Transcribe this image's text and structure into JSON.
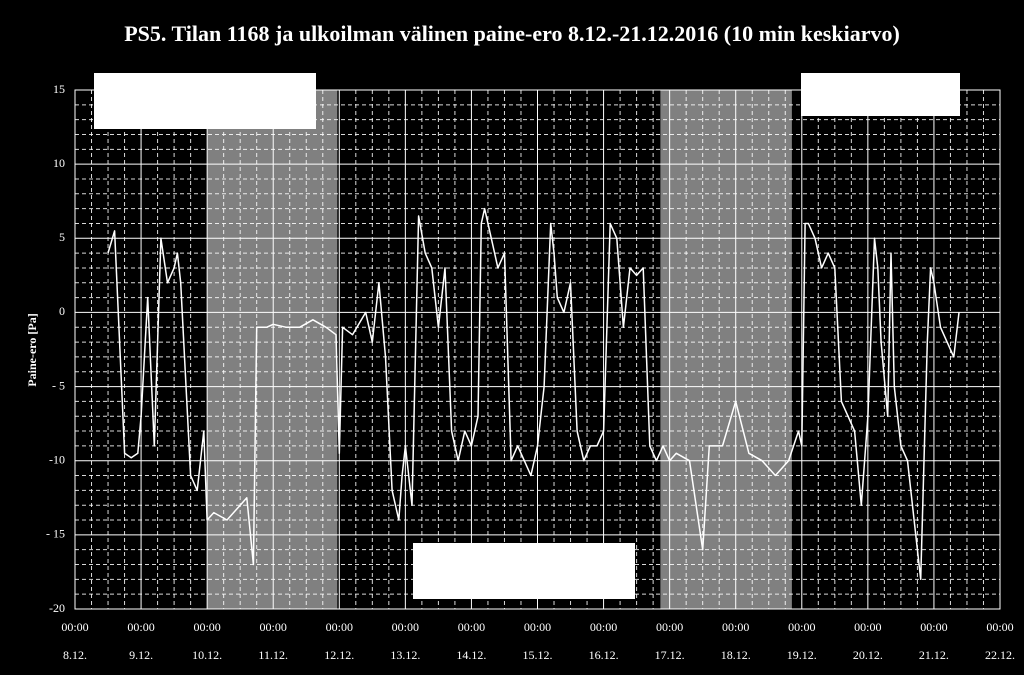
{
  "chart_data": {
    "type": "line",
    "title": "PS5. Tilan 1168 ja ulkoilman välinen paine-ero 8.12.-21.12.2016 (10 min keskiarvo)",
    "y_label": "Paine-ero [Pa]",
    "color": "#ffffff",
    "grid": true,
    "shade_color": "#808080",
    "shaded_ranges": [
      [
        2,
        3.97
      ],
      [
        8.86,
        10.85
      ]
    ],
    "xlim": [
      0,
      14
    ],
    "ylim": [
      -20,
      15
    ],
    "yticks": [
      15,
      10,
      5,
      0,
      {
        "value": -5,
        "label": "- 5"
      },
      -10,
      {
        "value": -15,
        "label": "- 15"
      },
      -20
    ],
    "xticks": [
      {
        "value": 0,
        "label": "00:00",
        "date": "8.12."
      },
      {
        "value": 1,
        "label": "00:00",
        "date": "9.12."
      },
      {
        "value": 2,
        "label": "00:00",
        "date": "10.12."
      },
      {
        "value": 3,
        "label": "00:00",
        "date": "11.12."
      },
      {
        "value": 4,
        "label": "00:00",
        "date": "12.12."
      },
      {
        "value": 5,
        "label": "00:00",
        "date": "13.12."
      },
      {
        "value": 6,
        "label": "00:00",
        "date": "14.12."
      },
      {
        "value": 7,
        "label": "00:00",
        "date": "15.12."
      },
      {
        "value": 8,
        "label": "00:00",
        "date": "16.12."
      },
      {
        "value": 9,
        "label": "00:00",
        "date": "17.12."
      },
      {
        "value": 10,
        "label": "00:00",
        "date": "18.12."
      },
      {
        "value": 11,
        "label": "00:00",
        "date": "19.12."
      },
      {
        "value": 12,
        "label": "00:00",
        "date": "20.12."
      },
      {
        "value": 13,
        "label": "00:00",
        "date": "21.12."
      },
      {
        "value": 14,
        "label": "00:00",
        "date": "22.12."
      }
    ],
    "x": [
      0.5,
      0.6,
      0.75,
      0.85,
      0.95,
      1.0,
      1.1,
      1.2,
      1.3,
      1.4,
      1.5,
      1.55,
      1.6,
      1.75,
      1.85,
      1.95,
      2.0,
      2.1,
      2.3,
      2.5,
      2.6,
      2.7,
      2.75,
      2.9,
      3.0,
      3.2,
      3.4,
      3.6,
      3.8,
      3.95,
      4.0,
      4.05,
      4.2,
      4.4,
      4.5,
      4.6,
      4.7,
      4.8,
      4.9,
      4.95,
      5.0,
      5.1,
      5.2,
      5.3,
      5.4,
      5.5,
      5.6,
      5.7,
      5.8,
      5.9,
      6.0,
      6.1,
      6.15,
      6.2,
      6.3,
      6.4,
      6.5,
      6.6,
      6.7,
      6.8,
      6.9,
      7.0,
      7.1,
      7.2,
      7.25,
      7.3,
      7.4,
      7.5,
      7.6,
      7.7,
      7.8,
      7.9,
      8.0,
      8.1,
      8.2,
      8.3,
      8.4,
      8.5,
      8.6,
      8.7,
      8.8,
      8.9,
      9.0,
      9.1,
      9.3,
      9.5,
      9.6,
      9.8,
      10.0,
      10.2,
      10.4,
      10.6,
      10.8,
      10.95,
      11.0,
      11.05,
      11.1,
      11.2,
      11.3,
      11.4,
      11.5,
      11.6,
      11.7,
      11.8,
      11.9,
      12.0,
      12.1,
      12.15,
      12.2,
      12.3,
      12.35,
      12.4,
      12.5,
      12.6,
      12.7,
      12.8,
      12.85,
      12.9,
      12.95,
      13.0,
      13.1,
      13.2,
      13.3,
      13.38
    ],
    "values": [
      4,
      5.5,
      -9.5,
      -9.8,
      -9.5,
      -7,
      1,
      -9,
      5,
      2,
      3,
      4,
      2,
      -11,
      -12,
      -8,
      -14,
      -13.5,
      -14,
      -13,
      -12.5,
      -17,
      -1,
      -1,
      -0.8,
      -1,
      -1,
      -0.5,
      -1,
      -1.5,
      -9.5,
      -1,
      -1.5,
      0,
      -2,
      2,
      -3,
      -12,
      -14,
      -11,
      -9,
      -13,
      6.5,
      4,
      3,
      -1,
      3,
      -8,
      -10,
      -8,
      -9,
      -7,
      6,
      7,
      5,
      3,
      4,
      -10,
      -9,
      -10,
      -11,
      -9,
      -5,
      6,
      4,
      1,
      0,
      2,
      -8,
      -10,
      -9,
      -9,
      -8,
      6,
      5,
      -1,
      3,
      2.5,
      3,
      -9,
      -10,
      -9,
      -10,
      -9.5,
      -10,
      -16,
      -9,
      -9,
      -6,
      -9.5,
      -10,
      -11,
      -10,
      -8,
      -9,
      6,
      6,
      5,
      3,
      4,
      3,
      -6,
      -7,
      -8,
      -13,
      -7,
      5,
      3,
      -2,
      -7,
      4,
      -5,
      -9,
      -10,
      -14,
      -18,
      -10,
      -2,
      3,
      2,
      -1,
      -2,
      -3,
      0
    ]
  }
}
